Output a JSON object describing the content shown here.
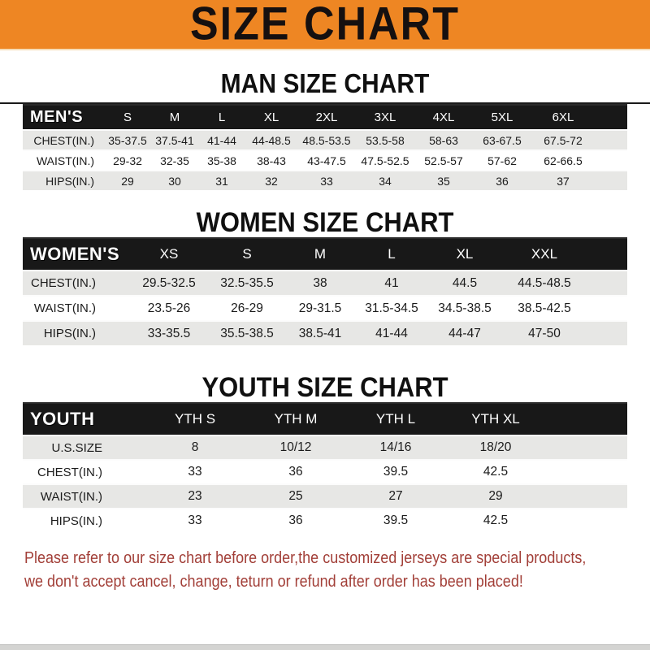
{
  "colors": {
    "banner_orange": "#EE8623",
    "header_black": "#181818",
    "row_gray": "#E7E7E5",
    "note_red": "#A23F38"
  },
  "banner": {
    "title": "SIZE CHART"
  },
  "sections": [
    {
      "key": "men",
      "heading": "MAN SIZE CHART",
      "table": {
        "header": [
          "MEN'S",
          "S",
          "M",
          "L",
          "XL",
          "2XL",
          "3XL",
          "4XL",
          "5XL",
          "6XL"
        ],
        "rows": [
          {
            "label": "CHEST(IN.)",
            "values": [
              "35-37.5",
              "37.5-41",
              "41-44",
              "44-48.5",
              "48.5-53.5",
              "53.5-58",
              "58-63",
              "63-67.5",
              "67.5-72"
            ]
          },
          {
            "label": "WAIST(IN.)",
            "values": [
              "29-32",
              "32-35",
              "35-38",
              "38-43",
              "43-47.5",
              "47.5-52.5",
              "52.5-57",
              "57-62",
              "62-66.5"
            ]
          },
          {
            "label": "HIPS(IN.)",
            "values": [
              "29",
              "30",
              "31",
              "32",
              "33",
              "34",
              "35",
              "36",
              "37"
            ]
          }
        ]
      }
    },
    {
      "key": "women",
      "heading": "WOMEN SIZE CHART",
      "table": {
        "header": [
          "WOMEN'S",
          "XS",
          "S",
          "M",
          "L",
          "XL",
          "XXL"
        ],
        "rows": [
          {
            "label": "CHEST(IN.)",
            "values": [
              "29.5-32.5",
              "32.5-35.5",
              "38",
              "41",
              "44.5",
              "44.5-48.5"
            ]
          },
          {
            "label": "WAIST(IN.)",
            "values": [
              "23.5-26",
              "26-29",
              "29-31.5",
              "31.5-34.5",
              "34.5-38.5",
              "38.5-42.5"
            ]
          },
          {
            "label": "HIPS(IN.)",
            "values": [
              "33-35.5",
              "35.5-38.5",
              "38.5-41",
              "41-44",
              "44-47",
              "47-50"
            ]
          }
        ]
      }
    },
    {
      "key": "youth",
      "heading": "YOUTH SIZE CHART",
      "table": {
        "header": [
          "YOUTH",
          "YTH S",
          "YTH M",
          "YTH L",
          "YTH XL"
        ],
        "rows": [
          {
            "label": "U.S.SIZE",
            "values": [
              "8",
              "10/12",
              "14/16",
              "18/20"
            ]
          },
          {
            "label": "CHEST(IN.)",
            "values": [
              "33",
              "36",
              "39.5",
              "42.5"
            ]
          },
          {
            "label": "WAIST(IN.)",
            "values": [
              "23",
              "25",
              "27",
              "29"
            ]
          },
          {
            "label": "HIPS(IN.)",
            "values": [
              "33",
              "36",
              "39.5",
              "42.5"
            ]
          }
        ]
      }
    }
  ],
  "footer": {
    "line1": "Please refer to our size chart before order,the customized jerseys are special products,",
    "line2": "we don't accept cancel, change, teturn or refund after order has been placed!"
  }
}
